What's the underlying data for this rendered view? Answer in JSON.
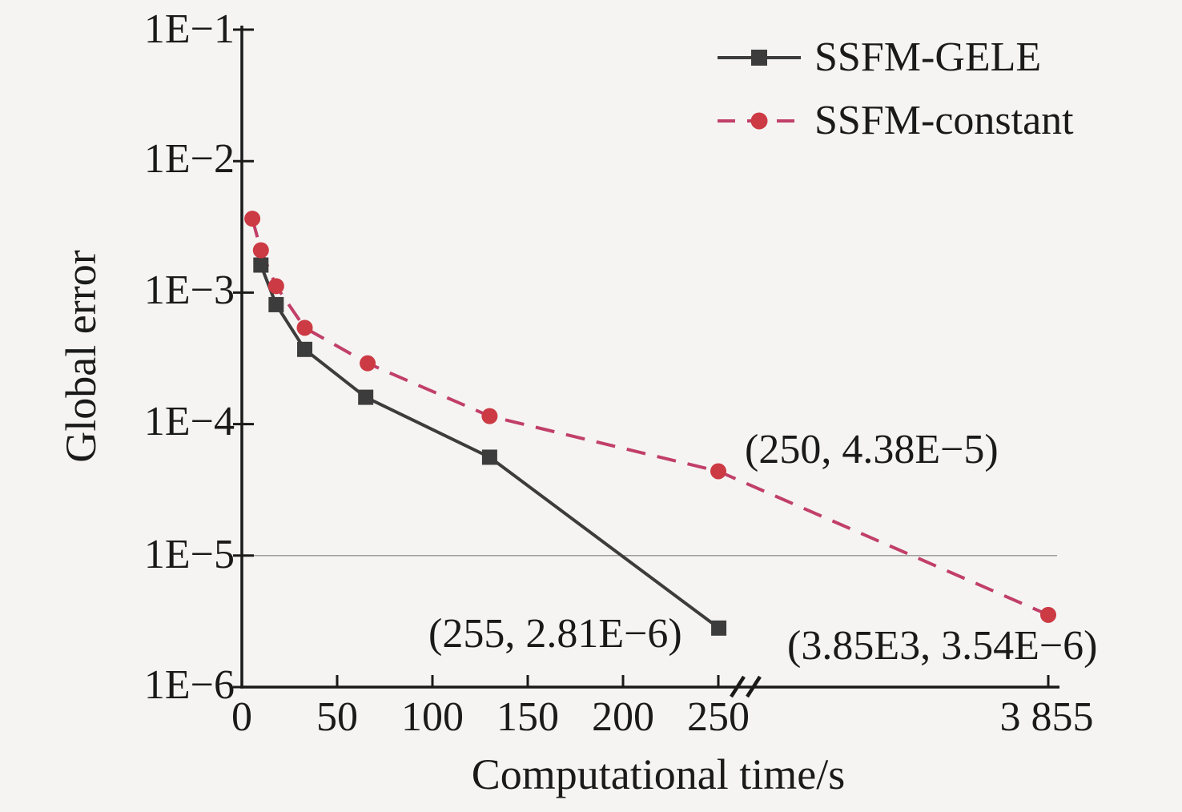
{
  "figure": {
    "background_color": "#f5f4f2",
    "axis_color": "#1a1a1a",
    "text_color": "#1a1a1a"
  },
  "legend": {
    "items": [
      {
        "label": "SSFM-GELE"
      },
      {
        "label": "SSFM-constant"
      }
    ]
  },
  "chart_data": {
    "type": "line",
    "title": "",
    "xlabel": "Computational time/s",
    "ylabel": "Global error",
    "x_axis": {
      "scale": "linear-with-break",
      "break_after_value": 250,
      "tick_values": [
        0,
        50,
        100,
        150,
        200,
        250,
        3855
      ],
      "tick_labels": [
        "0",
        "50",
        "100",
        "150",
        "200",
        "250",
        "3 855"
      ]
    },
    "y_axis": {
      "scale": "log",
      "range": [
        1e-06,
        0.1
      ],
      "tick_values": [
        0.1,
        0.01,
        0.001,
        0.0001,
        1e-05,
        1e-06
      ],
      "tick_labels": [
        "1E−1",
        "1E−2",
        "1E−3",
        "1E−4",
        "1E−5",
        "1E−6"
      ]
    },
    "reference_line": {
      "y": 1e-05,
      "color": "#9e9e9e"
    },
    "series": [
      {
        "name": "SSFM-GELE",
        "line_style": "solid",
        "marker": "square",
        "line_color": "#3c3c3c",
        "marker_color": "#3c3c3c",
        "points": [
          [
            10,
            0.00162
          ],
          [
            18,
            0.00081
          ],
          [
            33,
            0.00037
          ],
          [
            65,
            0.00016
          ],
          [
            130,
            5.6e-05
          ],
          [
            255,
            2.81e-06
          ]
        ]
      },
      {
        "name": "SSFM-constant",
        "line_style": "dashed",
        "marker": "circle",
        "line_color": "#c13f68",
        "marker_color": "#cc3a43",
        "points": [
          [
            5.5,
            0.00365
          ],
          [
            10,
            0.0021
          ],
          [
            18,
            0.00112
          ],
          [
            33,
            0.00054
          ],
          [
            66,
            0.00029
          ],
          [
            130,
            0.000115
          ],
          [
            250,
            4.38e-05
          ],
          [
            3855,
            3.54e-06
          ]
        ]
      }
    ],
    "annotations": [
      {
        "text": "(250, 4.38E−5)",
        "refers_to": "SSFM-constant point at x=250"
      },
      {
        "text": "(255, 2.81E−6)",
        "refers_to": "SSFM-GELE point at x=255"
      },
      {
        "text": "(3.85E3, 3.54E−6)",
        "refers_to": "SSFM-constant point at x=3855"
      }
    ]
  }
}
